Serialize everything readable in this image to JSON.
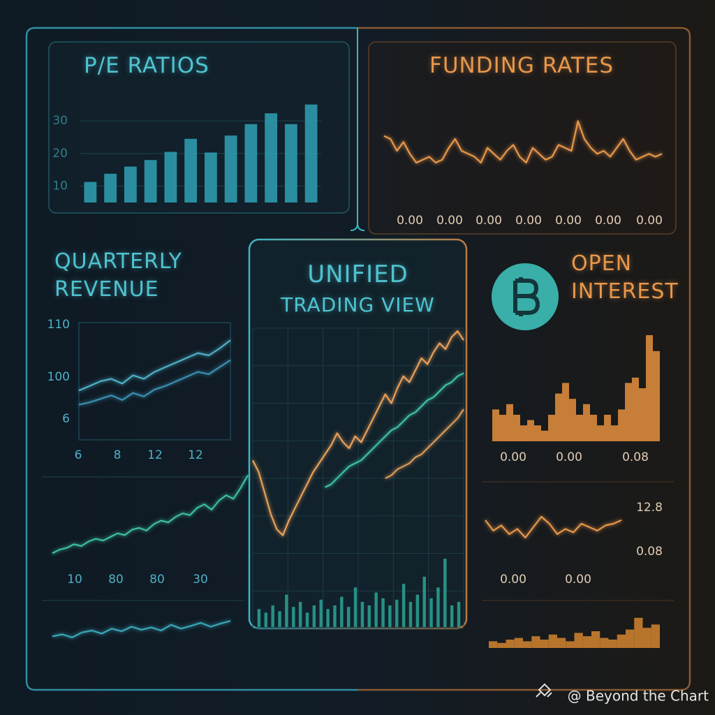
{
  "chart_data": [
    {
      "type": "bar",
      "title": "P/E RATIOS",
      "color": "#2e9aad",
      "values": [
        11.3,
        13.8,
        16,
        18,
        20.5,
        24.5,
        20.3,
        25.5,
        29,
        32.3,
        29,
        35
      ],
      "ylim": [
        5,
        36
      ],
      "yticks": [
        10,
        20,
        30
      ],
      "grid": true
    },
    {
      "type": "line",
      "title": "FUNDING RATES",
      "color": "#e8974a",
      "values": [
        65,
        60,
        40,
        55,
        35,
        20,
        25,
        30,
        20,
        25,
        45,
        60,
        40,
        35,
        30,
        20,
        45,
        35,
        25,
        40,
        50,
        30,
        20,
        45,
        35,
        25,
        30,
        50,
        45,
        40,
        90,
        60,
        45,
        35,
        40,
        30,
        45,
        60,
        40,
        25,
        30,
        35,
        30,
        35
      ],
      "ylim": [
        0,
        100
      ],
      "x_axis_labels": [
        "0.00",
        "0.00",
        "0.00",
        "0.00",
        "0.00",
        "0.00",
        "0.00"
      ]
    },
    {
      "type": "line",
      "title": "QUARTERLY REVENUE",
      "series": [
        {
          "color": "#4fb0c8",
          "values": [
            42,
            46,
            50,
            52,
            48,
            55,
            52,
            58,
            62,
            66,
            70,
            74,
            72,
            78,
            85
          ]
        },
        {
          "color": "#3a8fb0",
          "values": [
            30,
            32,
            35,
            38,
            34,
            40,
            37,
            43,
            46,
            50,
            54,
            58,
            56,
            62,
            68
          ]
        }
      ],
      "ylim": [
        0,
        100
      ],
      "y_axis_labels": [
        "110",
        "100",
        "6"
      ],
      "x_axis_labels": [
        "6",
        "8",
        "12",
        "12"
      ]
    },
    {
      "type": "line",
      "color": "#3dbf9f",
      "values": [
        2,
        6,
        8,
        12,
        10,
        15,
        18,
        16,
        20,
        24,
        22,
        28,
        30,
        27,
        34,
        38,
        36,
        42,
        46,
        44,
        52,
        56,
        50,
        60,
        66,
        62,
        74,
        88
      ],
      "ylim": [
        0,
        100
      ],
      "x_axis_labels": [
        "10",
        "80",
        "80",
        "30"
      ]
    },
    {
      "type": "line",
      "color": "#3aa7b8",
      "values": [
        25,
        30,
        22,
        35,
        40,
        32,
        45,
        38,
        50,
        42,
        48,
        40,
        55,
        45,
        52,
        60,
        50,
        58,
        65
      ],
      "ylim": [
        0,
        100
      ]
    },
    {
      "type": "line",
      "title": "UNIFIED",
      "subtitle": "TRADING VIEW",
      "series": [
        {
          "color": "#e8a05a",
          "values": [
            56,
            52,
            45,
            38,
            33,
            31,
            36,
            40,
            44,
            48,
            52,
            55,
            58,
            61,
            65,
            62,
            60,
            64,
            62,
            66,
            70,
            74,
            78,
            75,
            80,
            84,
            82,
            86,
            90,
            88,
            92,
            95,
            93,
            97,
            99,
            96
          ]
        },
        {
          "color": "#3fc0a8",
          "values": [
            null,
            null,
            null,
            null,
            null,
            null,
            null,
            null,
            null,
            null,
            null,
            null,
            47,
            48,
            50,
            52,
            54,
            55,
            56,
            58,
            60,
            62,
            64,
            66,
            67,
            69,
            71,
            72,
            74,
            76,
            77,
            79,
            81,
            82,
            84,
            85
          ]
        },
        {
          "color": "#d99a5a",
          "values": [
            null,
            null,
            null,
            null,
            null,
            null,
            null,
            null,
            null,
            null,
            null,
            null,
            null,
            null,
            null,
            null,
            null,
            null,
            null,
            null,
            null,
            null,
            50,
            51,
            53,
            54,
            55,
            57,
            58,
            60,
            62,
            64,
            66,
            68,
            70,
            73
          ]
        }
      ],
      "ylim": [
        0,
        100
      ],
      "grid": true
    },
    {
      "type": "bar",
      "color": "#2a9d8f",
      "values": [
        25,
        20,
        30,
        22,
        45,
        28,
        35,
        20,
        30,
        38,
        25,
        30,
        42,
        28,
        55,
        35,
        30,
        48,
        40,
        30,
        38,
        60,
        35,
        45,
        70,
        40,
        55,
        95,
        30,
        35
      ],
      "ylim": [
        0,
        100
      ]
    },
    {
      "type": "bar",
      "title": "OPEN INTEREST",
      "color": "#d98a3c",
      "values": [
        30,
        25,
        35,
        25,
        15,
        20,
        15,
        10,
        25,
        45,
        55,
        40,
        25,
        35,
        25,
        15,
        25,
        15,
        30,
        55,
        60,
        50,
        100,
        85
      ],
      "ylim": [
        0,
        100
      ],
      "x_axis_labels": [
        "0.00",
        "0.00",
        "0.08"
      ]
    },
    {
      "type": "line",
      "color": "#e8974a",
      "values": [
        70,
        40,
        55,
        30,
        45,
        20,
        50,
        80,
        60,
        30,
        45,
        35,
        60,
        50,
        40,
        55,
        60,
        70
      ],
      "ylim": [
        0,
        100
      ],
      "y_axis_labels": [
        "12.8",
        "0.08"
      ],
      "x_axis_labels": [
        "0.00",
        "0.00"
      ]
    },
    {
      "type": "bar",
      "color": "#c9802f",
      "values": [
        20,
        15,
        25,
        30,
        20,
        35,
        25,
        40,
        30,
        20,
        45,
        35,
        50,
        30,
        25,
        40,
        55,
        90,
        60,
        70
      ],
      "ylim": [
        0,
        100
      ]
    }
  ],
  "watermark": "@ Beyond the Chart"
}
